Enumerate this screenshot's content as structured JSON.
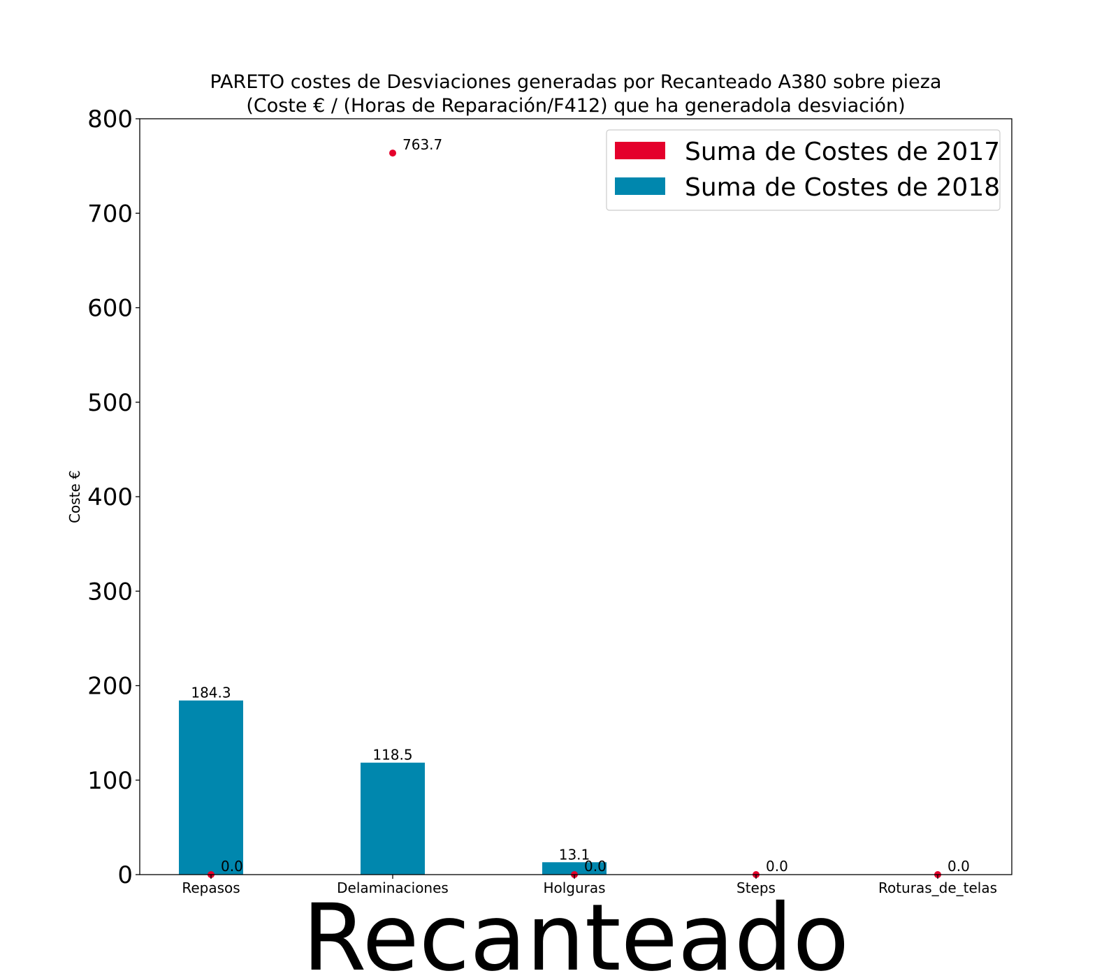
{
  "chart_data": {
    "type": "bar",
    "title_lines": [
      "PARETO costes de Desviaciones  generadas  por Recanteado A380 sobre pieza",
      "(Coste € / (Horas de Reparación/F412) que ha generadola desviación)"
    ],
    "xlabel": "Recanteado",
    "ylabel": "Coste €",
    "ylim": [
      0,
      800
    ],
    "yticks": [
      "0",
      "100",
      "200",
      "300",
      "400",
      "500",
      "600",
      "700",
      "800"
    ],
    "categories": [
      "Repasos",
      "Delaminaciones",
      "Holguras",
      "Steps",
      "Roturas_de_telas"
    ],
    "series": [
      {
        "name": "Suma de Costes de 2017",
        "kind": "points",
        "color": "#e4002b",
        "values": [
          0.0,
          763.7,
          0.0,
          0.0,
          0.0
        ],
        "labels": [
          "0.0",
          "763.7",
          "0.0",
          "0.0",
          "0.0"
        ]
      },
      {
        "name": "Suma de Costes de 2018",
        "kind": "bars",
        "color": "#0087ae",
        "values": [
          184.3,
          118.5,
          13.1,
          null,
          null
        ],
        "labels": [
          "184.3",
          "118.5",
          "13.1",
          "",
          ""
        ]
      }
    ],
    "legend_position": "top-right",
    "grid": false
  }
}
